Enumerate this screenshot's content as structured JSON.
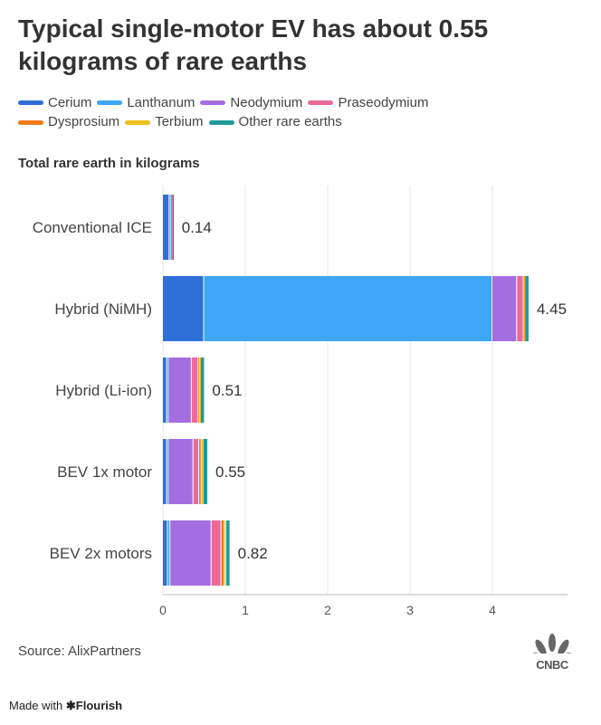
{
  "title": "Typical single-motor EV has about 0.55 kilograms of rare earths",
  "subtitle": "Total rare earth in kilograms",
  "source": "Source: AlixPartners",
  "logo": "CNBC",
  "made_with": "Made with",
  "made_with_brand": "Flourish",
  "chart_data": {
    "type": "bar",
    "orientation": "horizontal",
    "stacked": true,
    "title": "Typical single-motor EV has about 0.55 kilograms of rare earths",
    "xlabel": "Total rare earth in kilograms",
    "xlim": [
      0,
      4.9
    ],
    "xticks": [
      "0",
      "1",
      "2",
      "3",
      "4"
    ],
    "categories": [
      "Conventional ICE",
      "Hybrid (NiMH)",
      "Hybrid (Li-ion)",
      "BEV 1x motor",
      "BEV 2x motors"
    ],
    "totals": [
      "0.14",
      "4.45",
      "0.51",
      "0.55",
      "0.82"
    ],
    "series": [
      {
        "name": "Cerium",
        "color": "#2f6fd8",
        "values": [
          0.08,
          0.5,
          0.05,
          0.05,
          0.06
        ]
      },
      {
        "name": "Lanthanum",
        "color": "#3ea6f6",
        "values": [
          0.02,
          3.5,
          0.02,
          0.02,
          0.03
        ]
      },
      {
        "name": "Neodymium",
        "color": "#a56ee0",
        "values": [
          0.01,
          0.3,
          0.28,
          0.3,
          0.5
        ]
      },
      {
        "name": "Praseodymium",
        "color": "#ec6a9a",
        "values": [
          0.01,
          0.08,
          0.08,
          0.07,
          0.12
        ]
      },
      {
        "name": "Dysprosium",
        "color": "#f07a1a",
        "values": [
          0.0,
          0.01,
          0.02,
          0.03,
          0.04
        ]
      },
      {
        "name": "Terbium",
        "color": "#f0c020",
        "values": [
          0.0,
          0.01,
          0.01,
          0.02,
          0.02
        ]
      },
      {
        "name": "Other rare earths",
        "color": "#1f9a9a",
        "values": [
          0.02,
          0.05,
          0.05,
          0.06,
          0.05
        ]
      }
    ],
    "grid": true,
    "legend": "top-left"
  }
}
